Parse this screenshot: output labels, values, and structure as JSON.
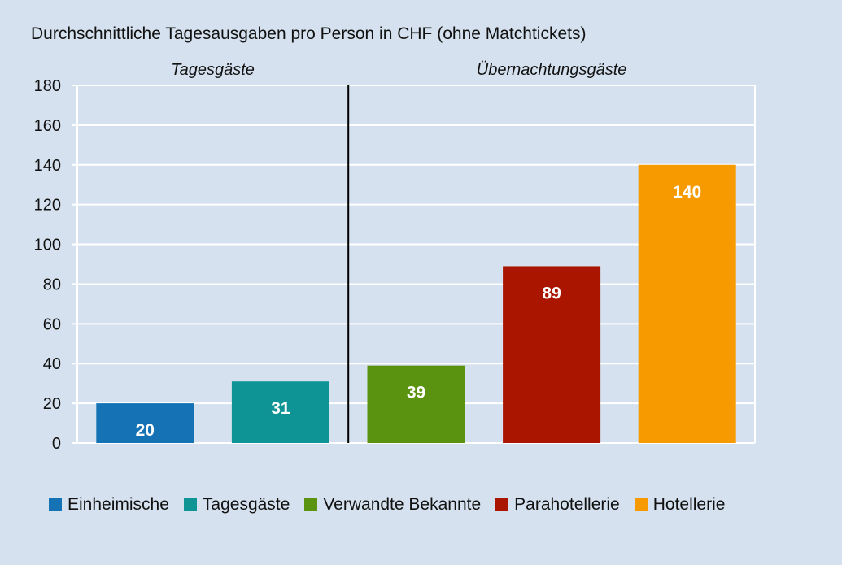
{
  "chart_data": {
    "type": "bar",
    "title": "Durchschnittliche Tagesausgaben pro Person in CHF (ohne Matchtickets)",
    "xlabel": "",
    "ylabel": "",
    "ylim": [
      0,
      180
    ],
    "yticks": [
      0,
      20,
      40,
      60,
      80,
      100,
      120,
      140,
      160,
      180
    ],
    "grid": true,
    "legend_position": "bottom",
    "groups": [
      {
        "label": "Tagesgäste",
        "categories": [
          "Einheimische",
          "Tagesgäste"
        ]
      },
      {
        "label": "Übernachtungsgäste",
        "categories": [
          "Verwandte Bekannte",
          "Parahotellerie",
          "Hotellerie"
        ]
      }
    ],
    "categories": [
      "Einheimische",
      "Tagesgäste",
      "Verwandte Bekannte",
      "Parahotellerie",
      "Hotellerie"
    ],
    "values": [
      20,
      31,
      39,
      89,
      140
    ],
    "data_labels": [
      "20",
      "31",
      "39",
      "89",
      "140"
    ],
    "colors": [
      "#1573b5",
      "#0e9495",
      "#5a930f",
      "#aa1500",
      "#f79a00"
    ]
  },
  "colors": {
    "background": "#d5e1ee",
    "plot_background": "#d5e1ee",
    "grid": "#ffffff",
    "divider": "#000000"
  }
}
